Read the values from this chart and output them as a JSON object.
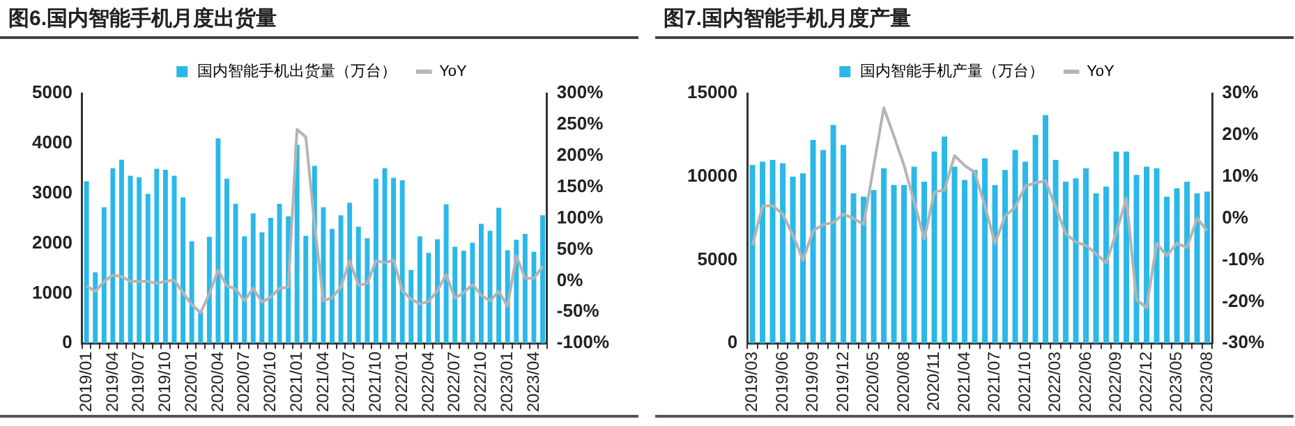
{
  "chart_data": [
    {
      "type": "bar",
      "title": "图6.国内智能手机月度出货量",
      "legend": "top",
      "categories": [
        "2019/01",
        null,
        null,
        "2019/04",
        null,
        null,
        "2019/07",
        null,
        null,
        "2019/10",
        null,
        null,
        "2020/01",
        null,
        null,
        "2020/04",
        null,
        null,
        "2020/07",
        null,
        null,
        "2020/10",
        null,
        null,
        "2021/01",
        null,
        null,
        "2021/04",
        null,
        null,
        "2021/07",
        null,
        null,
        "2021/10",
        null,
        null,
        "2022/01",
        null,
        null,
        "2022/04",
        null,
        null,
        "2022/07",
        null,
        null,
        "2022/10",
        null,
        null,
        "2023/01",
        null,
        null,
        "2023/04",
        null
      ],
      "series": [
        {
          "name": "国内智能手机出货量（万台）",
          "color": "#2bb8e8",
          "values": [
            3240,
            1420,
            2720,
            3500,
            3670,
            3350,
            3320,
            2990,
            3490,
            3470,
            3350,
            2920,
            2040,
            640,
            2130,
            4100,
            3290,
            2790,
            2140,
            2600,
            2220,
            2510,
            2790,
            2540,
            3970,
            2150,
            3550,
            2720,
            2290,
            2560,
            2810,
            2330,
            2100,
            3290,
            3500,
            3310,
            3260,
            1470,
            2140,
            1810,
            2080,
            2780,
            1930,
            1850,
            2010,
            2390,
            2250,
            2710,
            1860,
            2070,
            2190,
            1830,
            2560
          ]
        },
        {
          "name": "YoY",
          "type": "line",
          "axis": "y2",
          "color": "#b4b4b4",
          "values": [
            -8,
            -17,
            -1,
            9,
            7,
            -1,
            -1,
            -1,
            -4,
            -1,
            1,
            -19,
            -38,
            -51,
            -21,
            17,
            -8,
            -13,
            -32,
            -12,
            -34,
            -26,
            -12,
            -10,
            242,
            230,
            90,
            -32,
            -27,
            -10,
            32,
            -7,
            -4,
            32,
            29,
            33,
            -16,
            -29,
            -37,
            -33,
            -16,
            10,
            -28,
            -19,
            -6,
            -23,
            -32,
            -17,
            -41,
            40,
            4,
            4,
            23
          ]
        }
      ],
      "ylim": [
        0,
        5000
      ],
      "yticks": [
        0,
        1000,
        2000,
        3000,
        4000,
        5000
      ],
      "y2lim": [
        -100,
        300
      ],
      "y2ticks": [
        {
          "value": -100,
          "label": "-100%"
        },
        {
          "value": -50,
          "label": "-50%"
        },
        {
          "value": 0,
          "label": "0%"
        },
        {
          "value": 50,
          "label": "50%"
        },
        {
          "value": 100,
          "label": "100%"
        },
        {
          "value": 150,
          "label": "150%"
        },
        {
          "value": 200,
          "label": "200%"
        },
        {
          "value": 250,
          "label": "250%"
        },
        {
          "value": 300,
          "label": "300%"
        }
      ]
    },
    {
      "type": "bar",
      "title": "图7.国内智能手机月度产量",
      "legend": "top",
      "categories": [
        "2019/03",
        null,
        null,
        "2019/06",
        null,
        null,
        "2019/09",
        null,
        null,
        "2019/12",
        null,
        null,
        "2020/05",
        null,
        null,
        "2020/08",
        null,
        null,
        "2020/11",
        null,
        null,
        "2021/04",
        null,
        null,
        "2021/07",
        null,
        null,
        "2021/10",
        null,
        null,
        "2022/03",
        null,
        null,
        "2022/06",
        null,
        null,
        "2022/09",
        null,
        null,
        "2022/12",
        null,
        null,
        "2023/05",
        null,
        null,
        "2023/08"
      ],
      "series": [
        {
          "name": "国内智能手机产量（万台）",
          "color": "#2bb8e8",
          "values": [
            10700,
            10900,
            11000,
            10800,
            10000,
            10200,
            12200,
            11600,
            13100,
            11900,
            9000,
            8800,
            9200,
            10500,
            9500,
            9500,
            10600,
            9700,
            11500,
            12400,
            10600,
            9800,
            10400,
            11100,
            9500,
            10400,
            11600,
            10900,
            12500,
            13700,
            11000,
            9700,
            9900,
            10500,
            9000,
            9400,
            11500,
            11500,
            10100,
            10600,
            10500,
            8800,
            9300,
            9700,
            9000,
            9100
          ]
        },
        {
          "name": "YoY",
          "type": "line",
          "axis": "y2",
          "color": "#b4b4b4",
          "values": [
            -6.5,
            3,
            3,
            1,
            -4,
            -10,
            -3,
            -1.5,
            -1,
            1,
            0,
            -1.5,
            12.5,
            26.5,
            19.7,
            12.7,
            4,
            -5,
            6.3,
            6.8,
            15,
            12.7,
            11,
            3,
            -6,
            0.5,
            2.7,
            7.7,
            8.5,
            9,
            2.7,
            -3.7,
            -5.7,
            -6.5,
            -8.5,
            -10.7,
            -3.5,
            4.8,
            -19.5,
            -21.5,
            -6,
            -9,
            -6,
            -7,
            0,
            -3
          ]
        }
      ],
      "ylim": [
        0,
        15000
      ],
      "yticks": [
        0,
        5000,
        10000,
        15000
      ],
      "y2lim": [
        -30,
        30
      ],
      "y2ticks": [
        {
          "value": -30,
          "label": "-30%"
        },
        {
          "value": -20,
          "label": "-20%"
        },
        {
          "value": -10,
          "label": "-10%"
        },
        {
          "value": 0,
          "label": "0%"
        },
        {
          "value": 10,
          "label": "10%"
        },
        {
          "value": 20,
          "label": "20%"
        },
        {
          "value": 30,
          "label": "30%"
        }
      ]
    }
  ]
}
